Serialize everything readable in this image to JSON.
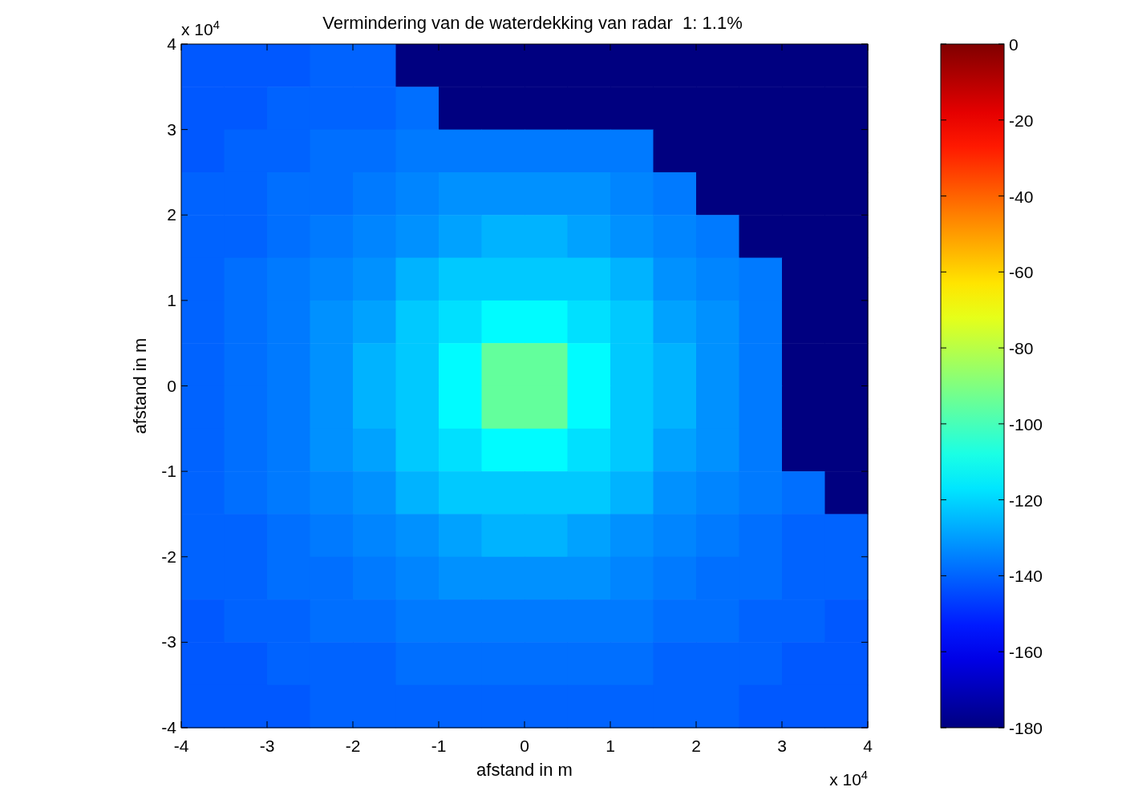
{
  "chart_data": {
    "type": "heatmap",
    "title": "Vermindering van de waterdekking van radar  1: 1.1%",
    "xlabel": "afstand in m",
    "ylabel": "afstand in m",
    "annotations": [
      "x 10$^{4}$",
      "x 10$^{4}$"
    ],
    "x": [
      -3.75,
      -3.25,
      -2.75,
      -2.25,
      -1.75,
      -1.25,
      -0.75,
      -0.25,
      0.25,
      0.75,
      1.25,
      1.75,
      2.25,
      2.75,
      3.25,
      3.75
    ],
    "y": [
      3.75,
      3.25,
      2.75,
      2.25,
      1.75,
      1.25,
      0.75,
      0.25,
      -0.25,
      -0.75,
      -1.25,
      -1.75,
      -2.25,
      -2.75,
      -3.25,
      -3.75
    ],
    "xlim": [
      -4,
      4
    ],
    "ylim": [
      -4,
      4
    ],
    "xticks": [
      -4,
      -3,
      -2,
      -1,
      0,
      1,
      2,
      3,
      4
    ],
    "yticks": [
      -4,
      -3,
      -2,
      -1,
      0,
      1,
      2,
      3,
      4
    ],
    "clim": [
      -180,
      0
    ],
    "cticks": [
      0,
      -20,
      -40,
      -60,
      -80,
      -100,
      -120,
      -140,
      -160,
      -180
    ],
    "cells": [
      [
        -142,
        -142,
        -142,
        -140,
        -140,
        -180,
        -180,
        -180,
        -180,
        -180,
        -180,
        -180,
        -180,
        -180,
        -180,
        -180
      ],
      [
        -142,
        -142,
        -140,
        -140,
        -140,
        -138,
        -180,
        -180,
        -180,
        -180,
        -180,
        -180,
        -180,
        -180,
        -180,
        -180
      ],
      [
        -142,
        -140,
        -140,
        -138,
        -138,
        -136,
        -136,
        -136,
        -136,
        -136,
        -136,
        -180,
        -180,
        -180,
        -180,
        -180
      ],
      [
        -140,
        -140,
        -138,
        -138,
        -136,
        -134,
        -132,
        -132,
        -132,
        -132,
        -134,
        -136,
        -180,
        -180,
        -180,
        -180
      ],
      [
        -140,
        -140,
        -138,
        -136,
        -134,
        -132,
        -129,
        -126,
        -126,
        -129,
        -132,
        -134,
        -136,
        -180,
        -180,
        -180
      ],
      [
        -140,
        -138,
        -136,
        -134,
        -132,
        -126,
        -122,
        -122,
        -122,
        -122,
        -126,
        -132,
        -134,
        -136,
        -180,
        -180
      ],
      [
        -140,
        -138,
        -136,
        -132,
        -129,
        -122,
        -118,
        -113,
        -113,
        -118,
        -122,
        -129,
        -132,
        -136,
        -180,
        -180
      ],
      [
        -140,
        -138,
        -136,
        -132,
        -126,
        -122,
        -113,
        -95,
        -95,
        -113,
        -122,
        -126,
        -132,
        -136,
        -180,
        -180
      ],
      [
        -140,
        -138,
        -136,
        -132,
        -126,
        -122,
        -113,
        -95,
        -95,
        -113,
        -122,
        -126,
        -132,
        -136,
        -180,
        -180
      ],
      [
        -140,
        -138,
        -136,
        -132,
        -129,
        -122,
        -118,
        -113,
        -113,
        -118,
        -122,
        -129,
        -132,
        -136,
        -180,
        -180
      ],
      [
        -140,
        -138,
        -136,
        -134,
        -132,
        -126,
        -122,
        -122,
        -122,
        -122,
        -126,
        -132,
        -134,
        -136,
        -138,
        -180
      ],
      [
        -140,
        -140,
        -138,
        -136,
        -134,
        -132,
        -129,
        -126,
        -126,
        -129,
        -132,
        -134,
        -136,
        -138,
        -140,
        -140
      ],
      [
        -140,
        -140,
        -138,
        -138,
        -136,
        -134,
        -132,
        -132,
        -132,
        -132,
        -134,
        -136,
        -138,
        -138,
        -140,
        -140
      ],
      [
        -142,
        -140,
        -140,
        -138,
        -138,
        -136,
        -136,
        -136,
        -136,
        -136,
        -136,
        -138,
        -138,
        -140,
        -140,
        -142
      ],
      [
        -142,
        -142,
        -140,
        -140,
        -140,
        -138,
        -138,
        -138,
        -138,
        -138,
        -138,
        -140,
        -140,
        -140,
        -142,
        -142
      ],
      [
        -142,
        -142,
        -142,
        -140,
        -140,
        -140,
        -140,
        -140,
        -140,
        -140,
        -140,
        -140,
        -140,
        -142,
        -142,
        -142
      ]
    ]
  }
}
